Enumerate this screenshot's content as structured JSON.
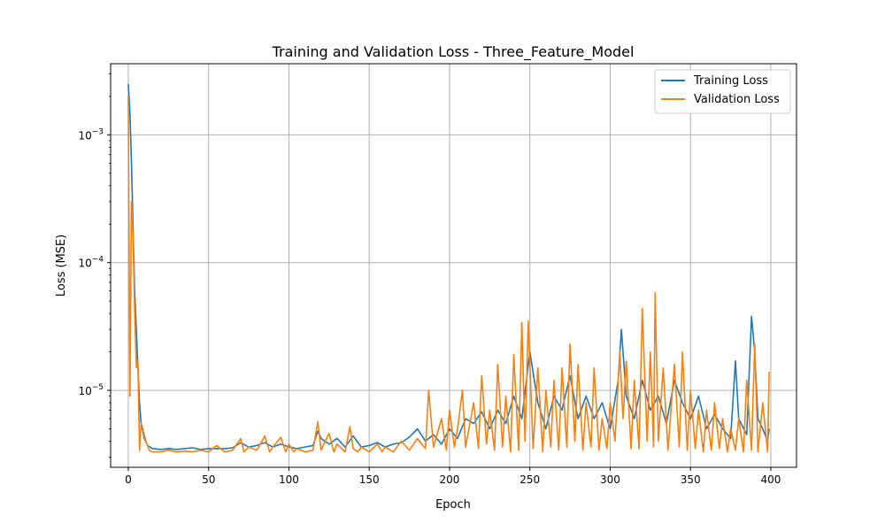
{
  "chart_data": {
    "type": "line",
    "title": "Training and Validation Loss - Three_Feature_Model",
    "xlabel": "Epoch",
    "ylabel": "Loss (MSE)",
    "xlim": [
      -11,
      416
    ],
    "ylim": [
      2.5e-06,
      0.0036
    ],
    "yscale": "log",
    "grid": true,
    "legend_position": "top-right",
    "x_ticks": [
      0,
      50,
      100,
      150,
      200,
      250,
      300,
      350,
      400
    ],
    "y_ticks": [
      {
        "value": 1e-05,
        "base": "10",
        "exp": "−5"
      },
      {
        "value": 0.0001,
        "base": "10",
        "exp": "−4"
      },
      {
        "value": 0.001,
        "base": "10",
        "exp": "−3"
      }
    ],
    "series": [
      {
        "name": "Training Loss",
        "color": "#1f77b4",
        "points": [
          [
            0,
            0.0025
          ],
          [
            1,
            0.0015
          ],
          [
            2,
            0.0006
          ],
          [
            3,
            0.00018
          ],
          [
            4,
            6e-05
          ],
          [
            5,
            3e-05
          ],
          [
            6,
            1.5e-05
          ],
          [
            7,
            8e-06
          ],
          [
            8,
            5.5e-06
          ],
          [
            10,
            4.2e-06
          ],
          [
            12,
            3.7e-06
          ],
          [
            15,
            3.5e-06
          ],
          [
            20,
            3.45e-06
          ],
          [
            25,
            3.5e-06
          ],
          [
            30,
            3.45e-06
          ],
          [
            35,
            3.5e-06
          ],
          [
            40,
            3.55e-06
          ],
          [
            45,
            3.45e-06
          ],
          [
            50,
            3.5e-06
          ],
          [
            55,
            3.5e-06
          ],
          [
            60,
            3.5e-06
          ],
          [
            65,
            3.55e-06
          ],
          [
            70,
            3.9e-06
          ],
          [
            75,
            3.6e-06
          ],
          [
            80,
            3.7e-06
          ],
          [
            85,
            3.9e-06
          ],
          [
            90,
            3.6e-06
          ],
          [
            95,
            3.8e-06
          ],
          [
            100,
            3.6e-06
          ],
          [
            105,
            3.5e-06
          ],
          [
            110,
            3.6e-06
          ],
          [
            115,
            3.7e-06
          ],
          [
            118,
            4.8e-06
          ],
          [
            120,
            4.2e-06
          ],
          [
            125,
            3.8e-06
          ],
          [
            130,
            4.2e-06
          ],
          [
            135,
            3.6e-06
          ],
          [
            140,
            4.4e-06
          ],
          [
            145,
            3.6e-06
          ],
          [
            150,
            3.7e-06
          ],
          [
            155,
            3.9e-06
          ],
          [
            160,
            3.6e-06
          ],
          [
            165,
            3.8e-06
          ],
          [
            170,
            3.9e-06
          ],
          [
            175,
            4.3e-06
          ],
          [
            180,
            5e-06
          ],
          [
            185,
            4e-06
          ],
          [
            190,
            4.5e-06
          ],
          [
            195,
            3.8e-06
          ],
          [
            200,
            5e-06
          ],
          [
            205,
            4.2e-06
          ],
          [
            210,
            6e-06
          ],
          [
            215,
            5.5e-06
          ],
          [
            220,
            6.8e-06
          ],
          [
            225,
            5e-06
          ],
          [
            230,
            7e-06
          ],
          [
            235,
            5.5e-06
          ],
          [
            240,
            9e-06
          ],
          [
            245,
            6e-06
          ],
          [
            250,
            2e-05
          ],
          [
            255,
            8e-06
          ],
          [
            260,
            5e-06
          ],
          [
            265,
            9e-06
          ],
          [
            270,
            7e-06
          ],
          [
            275,
            1.3e-05
          ],
          [
            280,
            6e-06
          ],
          [
            285,
            9e-06
          ],
          [
            290,
            6e-06
          ],
          [
            295,
            8e-06
          ],
          [
            300,
            5e-06
          ],
          [
            305,
            1.2e-05
          ],
          [
            307,
            3e-05
          ],
          [
            310,
            9e-06
          ],
          [
            315,
            6e-06
          ],
          [
            320,
            1.2e-05
          ],
          [
            325,
            7e-06
          ],
          [
            330,
            9e-06
          ],
          [
            335,
            5.5e-06
          ],
          [
            340,
            1.2e-05
          ],
          [
            345,
            8e-06
          ],
          [
            350,
            6e-06
          ],
          [
            355,
            9e-06
          ],
          [
            360,
            5e-06
          ],
          [
            365,
            6.5e-06
          ],
          [
            370,
            5e-06
          ],
          [
            375,
            4.2e-06
          ],
          [
            378,
            1.7e-05
          ],
          [
            380,
            6e-06
          ],
          [
            385,
            4.5e-06
          ],
          [
            388,
            3.8e-05
          ],
          [
            390,
            2e-05
          ],
          [
            392,
            6e-06
          ],
          [
            395,
            5e-06
          ],
          [
            398,
            4e-06
          ],
          [
            399,
            5e-06
          ]
        ]
      },
      {
        "name": "Validation Loss",
        "color": "#ff7f0e",
        "points": [
          [
            0,
            0.002
          ],
          [
            1,
            9e-06
          ],
          [
            2,
            0.0003
          ],
          [
            3,
            0.00015
          ],
          [
            4,
            4e-05
          ],
          [
            5,
            1.5e-05
          ],
          [
            6,
            1.7e-05
          ],
          [
            7,
            3.4e-06
          ],
          [
            8,
            5.5e-06
          ],
          [
            9,
            5e-06
          ],
          [
            11,
            4e-06
          ],
          [
            13,
            3.4e-06
          ],
          [
            15,
            3.3e-06
          ],
          [
            20,
            3.3e-06
          ],
          [
            25,
            3.4e-06
          ],
          [
            30,
            3.3e-06
          ],
          [
            35,
            3.35e-06
          ],
          [
            40,
            3.3e-06
          ],
          [
            45,
            3.4e-06
          ],
          [
            50,
            3.3e-06
          ],
          [
            55,
            3.7e-06
          ],
          [
            60,
            3.3e-06
          ],
          [
            65,
            3.4e-06
          ],
          [
            70,
            4.2e-06
          ],
          [
            72,
            3.3e-06
          ],
          [
            75,
            3.6e-06
          ],
          [
            80,
            3.4e-06
          ],
          [
            85,
            4.4e-06
          ],
          [
            88,
            3.3e-06
          ],
          [
            90,
            3.6e-06
          ],
          [
            95,
            4.3e-06
          ],
          [
            98,
            3.3e-06
          ],
          [
            100,
            3.8e-06
          ],
          [
            103,
            3.3e-06
          ],
          [
            105,
            3.5e-06
          ],
          [
            110,
            3.3e-06
          ],
          [
            115,
            3.4e-06
          ],
          [
            118,
            5.7e-06
          ],
          [
            120,
            3.4e-06
          ],
          [
            125,
            4.6e-06
          ],
          [
            128,
            3.3e-06
          ],
          [
            130,
            3.8e-06
          ],
          [
            135,
            3.3e-06
          ],
          [
            138,
            5.2e-06
          ],
          [
            140,
            3.5e-06
          ],
          [
            143,
            3.3e-06
          ],
          [
            145,
            3.6e-06
          ],
          [
            150,
            3.3e-06
          ],
          [
            155,
            3.8e-06
          ],
          [
            158,
            3.3e-06
          ],
          [
            160,
            3.6e-06
          ],
          [
            165,
            3.3e-06
          ],
          [
            170,
            4e-06
          ],
          [
            175,
            3.4e-06
          ],
          [
            180,
            4.2e-06
          ],
          [
            185,
            3.5e-06
          ],
          [
            187,
            1e-05
          ],
          [
            190,
            3.6e-06
          ],
          [
            195,
            6e-06
          ],
          [
            198,
            3.4e-06
          ],
          [
            200,
            7e-06
          ],
          [
            203,
            3.6e-06
          ],
          [
            205,
            5e-06
          ],
          [
            208,
            1e-05
          ],
          [
            210,
            3.6e-06
          ],
          [
            215,
            8e-06
          ],
          [
            218,
            3.5e-06
          ],
          [
            220,
            1.3e-05
          ],
          [
            223,
            3.8e-06
          ],
          [
            225,
            7e-06
          ],
          [
            228,
            3.4e-06
          ],
          [
            230,
            1.6e-05
          ],
          [
            233,
            3.6e-06
          ],
          [
            235,
            9e-06
          ],
          [
            238,
            3.3e-06
          ],
          [
            240,
            1.9e-05
          ],
          [
            243,
            3.4e-06
          ],
          [
            245,
            3.4e-05
          ],
          [
            247,
            4e-06
          ],
          [
            249,
            3.5e-05
          ],
          [
            252,
            3.5e-06
          ],
          [
            255,
            1.5e-05
          ],
          [
            258,
            3.3e-06
          ],
          [
            260,
            1e-05
          ],
          [
            263,
            3.6e-06
          ],
          [
            265,
            1.2e-05
          ],
          [
            268,
            3.4e-06
          ],
          [
            270,
            1.5e-05
          ],
          [
            273,
            3.6e-06
          ],
          [
            275,
            2.3e-05
          ],
          [
            278,
            4e-06
          ],
          [
            280,
            1.6e-05
          ],
          [
            283,
            3.4e-06
          ],
          [
            285,
            8e-06
          ],
          [
            288,
            3.6e-06
          ],
          [
            290,
            1.5e-05
          ],
          [
            293,
            3.4e-06
          ],
          [
            295,
            6e-06
          ],
          [
            298,
            3.5e-06
          ],
          [
            300,
            8e-06
          ],
          [
            303,
            4e-06
          ],
          [
            306,
            2e-05
          ],
          [
            308,
            6e-06
          ],
          [
            310,
            1.7e-05
          ],
          [
            313,
            3.5e-06
          ],
          [
            315,
            1.2e-05
          ],
          [
            318,
            3.5e-06
          ],
          [
            320,
            4.4e-05
          ],
          [
            323,
            4e-06
          ],
          [
            325,
            2e-05
          ],
          [
            327,
            3.6e-06
          ],
          [
            328,
            5.8e-05
          ],
          [
            330,
            4e-06
          ],
          [
            333,
            1.5e-05
          ],
          [
            336,
            3.4e-06
          ],
          [
            340,
            1.6e-05
          ],
          [
            343,
            3.6e-06
          ],
          [
            345,
            2e-05
          ],
          [
            348,
            3.4e-06
          ],
          [
            350,
            1e-05
          ],
          [
            353,
            3.5e-06
          ],
          [
            355,
            7e-06
          ],
          [
            358,
            3.3e-06
          ],
          [
            360,
            7e-06
          ],
          [
            363,
            3.4e-06
          ],
          [
            365,
            8e-06
          ],
          [
            368,
            3.5e-06
          ],
          [
            370,
            6e-06
          ],
          [
            373,
            3.3e-06
          ],
          [
            375,
            5e-06
          ],
          [
            378,
            3.4e-06
          ],
          [
            380,
            6e-06
          ],
          [
            383,
            3.3e-06
          ],
          [
            385,
            1.2e-05
          ],
          [
            388,
            3.4e-06
          ],
          [
            390,
            2.3e-05
          ],
          [
            392,
            3.3e-06
          ],
          [
            395,
            8e-06
          ],
          [
            398,
            3.3e-06
          ],
          [
            399,
            1.4e-05
          ]
        ]
      }
    ]
  }
}
